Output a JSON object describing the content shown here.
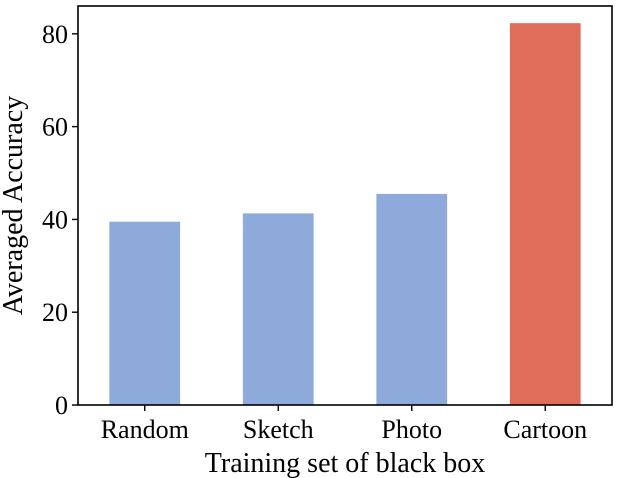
{
  "chart_data": {
    "type": "bar",
    "categories": [
      "Random",
      "Sketch",
      "Photo",
      "Cartoon"
    ],
    "values": [
      39.5,
      41.3,
      45.5,
      82.3
    ],
    "xlabel": "Training set of black box",
    "ylabel": "Averaged Accuracy",
    "ylim": [
      0,
      86
    ],
    "yticks": [
      0,
      20,
      40,
      60,
      80
    ],
    "grid": false,
    "colors": {
      "default": "#8eaadb",
      "highlight": "#e06c5a",
      "highlight_category": "Cartoon"
    }
  }
}
